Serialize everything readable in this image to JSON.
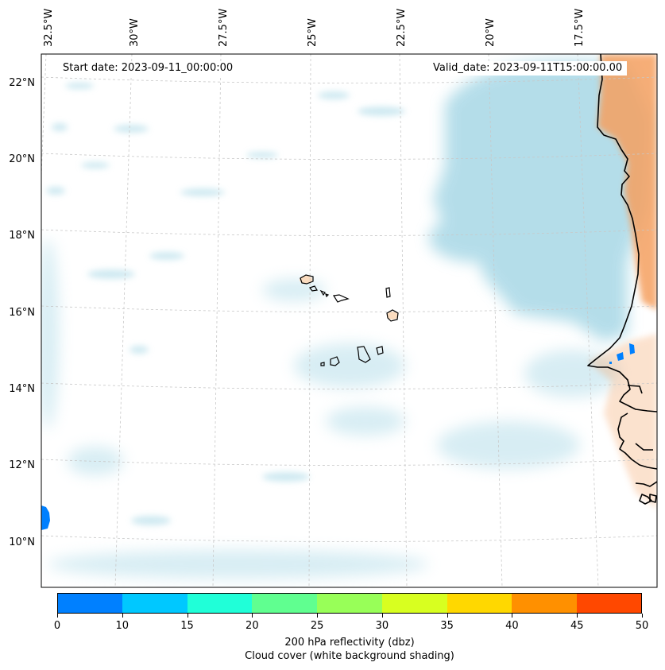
{
  "map": {
    "start_date": "Start date: 2023-09-11_00:00:00",
    "valid_date": "Valid_date: 2023-09-11T15:00:00.00",
    "lon_labels": [
      "32.5°W",
      "30°W",
      "27.5°W",
      "25°W",
      "22.5°W",
      "20°W",
      "17.5°W"
    ],
    "lat_labels": [
      "22°N",
      "20°N",
      "18°N",
      "16°N",
      "14°N",
      "12°N",
      "10°N"
    ],
    "land_color": "#f5a060",
    "cloud_color": "#a8d8e6",
    "coastline_color": "#000000"
  },
  "colorbar": {
    "colors": [
      "#0080ff",
      "#00c8ff",
      "#20ffd8",
      "#60ff90",
      "#98ff58",
      "#d8ff20",
      "#ffd800",
      "#ff9000",
      "#ff4800"
    ],
    "tick_labels": [
      "0",
      "10",
      "15",
      "20",
      "25",
      "30",
      "35",
      "40",
      "45",
      "50"
    ],
    "title_line1": "200 hPa reflectivity (dbz)",
    "title_line2": "Cloud cover (white background shading)"
  }
}
